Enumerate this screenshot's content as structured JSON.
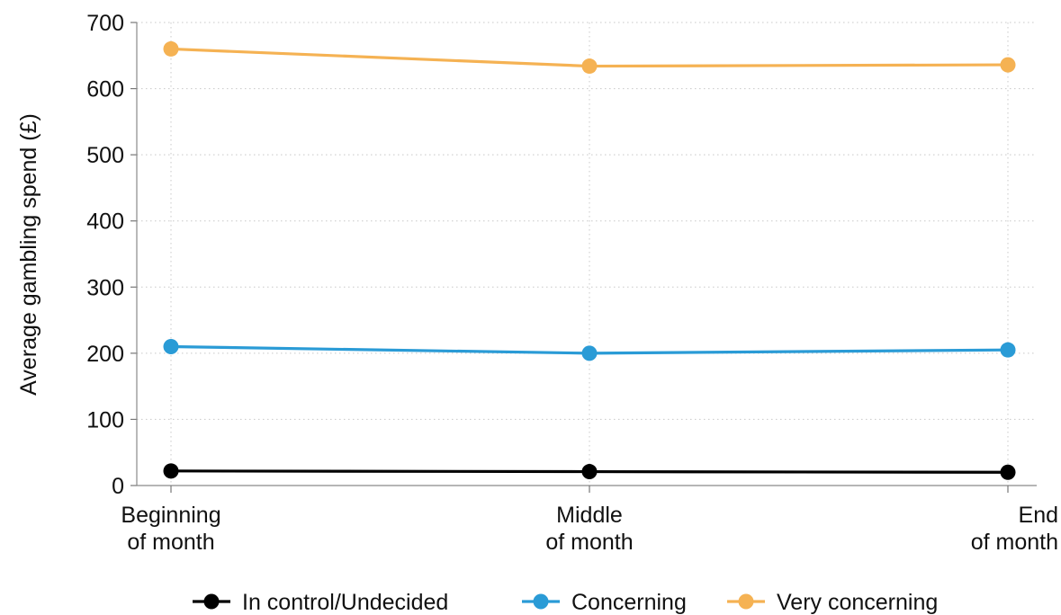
{
  "chart_data": {
    "type": "line",
    "ylabel": "Average gambling spend (£)",
    "xlabel": "",
    "ylim": [
      0,
      700
    ],
    "yticks": [
      0,
      100,
      200,
      300,
      400,
      500,
      600,
      700
    ],
    "categories": [
      [
        "Beginning",
        "of month"
      ],
      [
        "Middle",
        "of month"
      ],
      [
        "End",
        "of month"
      ]
    ],
    "grid": true,
    "legend_position": "bottom",
    "series": [
      {
        "name": "In control/Undecided",
        "color": "#000000",
        "values": [
          22,
          21,
          20
        ]
      },
      {
        "name": "Concerning",
        "color": "#2a9bd6",
        "values": [
          210,
          200,
          205
        ]
      },
      {
        "name": "Very concerning",
        "color": "#f5b253",
        "values": [
          660,
          634,
          636
        ]
      }
    ]
  }
}
